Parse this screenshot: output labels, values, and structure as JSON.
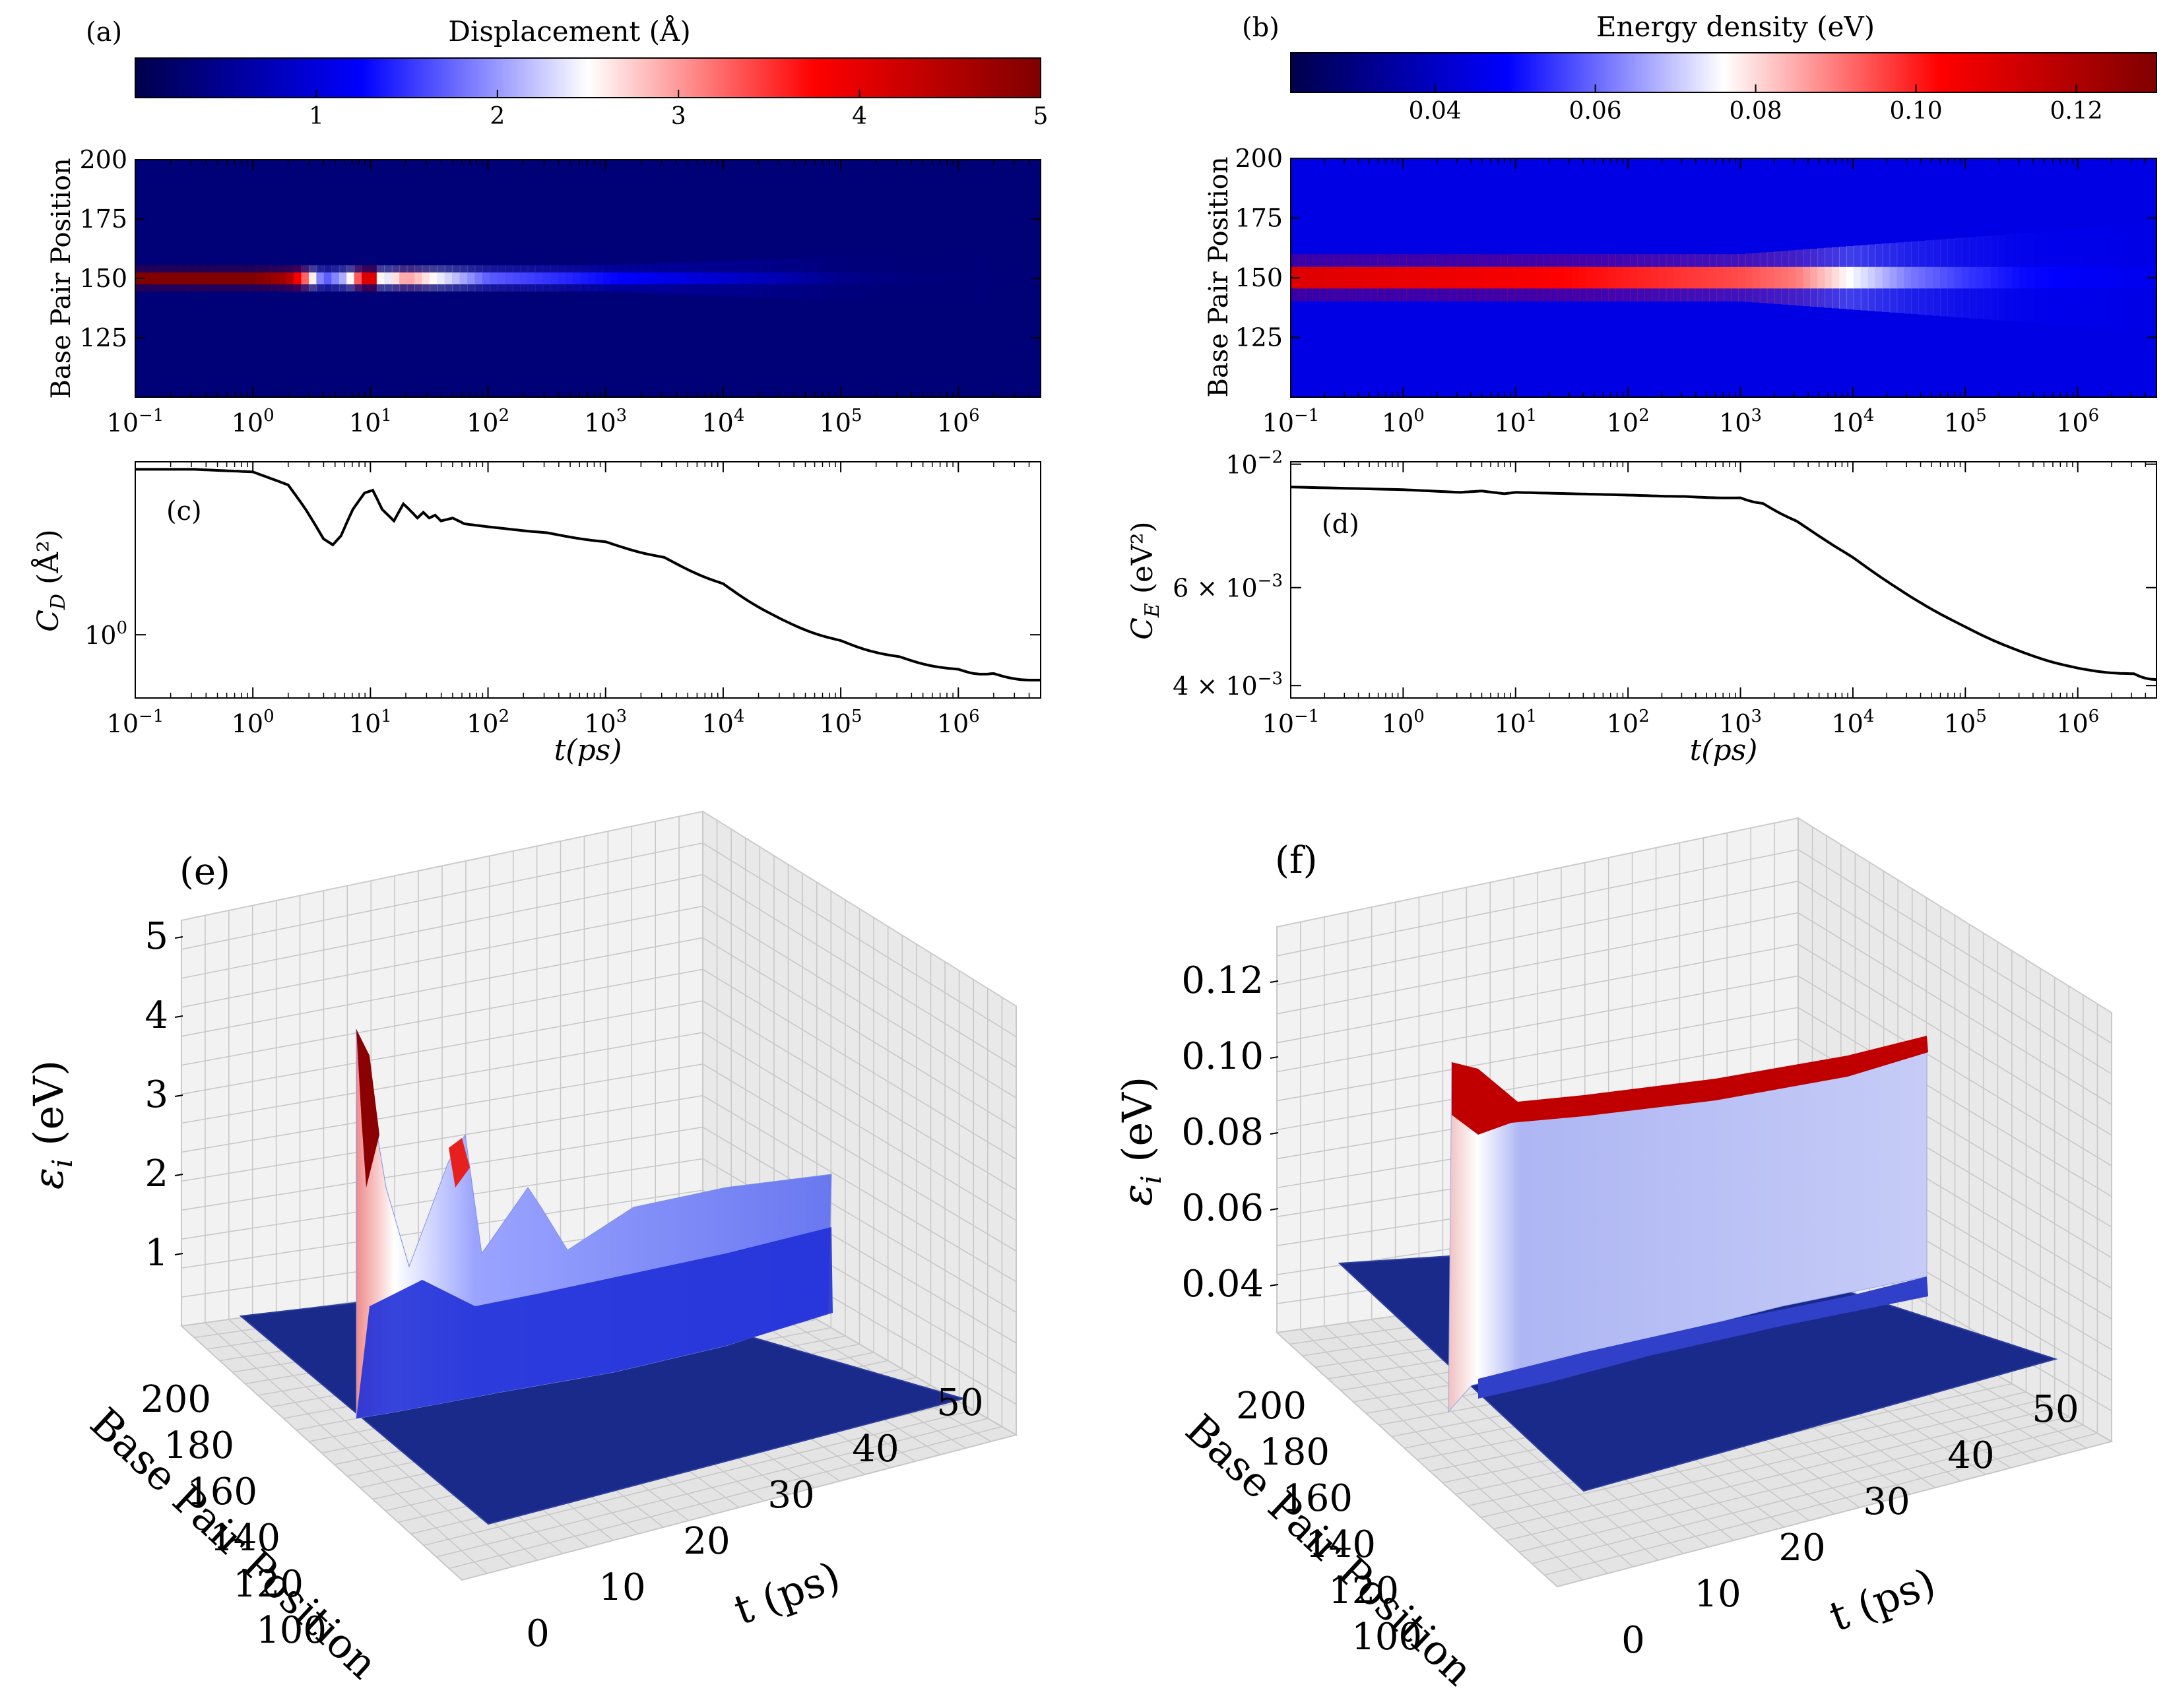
{
  "chart_data": [
    {
      "panel": "a",
      "type": "heatmap",
      "label": "(a)",
      "colorbar": {
        "title": "Displacement (Å)",
        "ticks": [
          "1",
          "2",
          "3",
          "4",
          "5"
        ],
        "tick_values": [
          1,
          2,
          3,
          4,
          5
        ],
        "range": [
          0,
          5
        ],
        "colormap": "seismic"
      },
      "xlabel": "",
      "xscale": "log",
      "xlim_exp": [
        -1,
        6.7
      ],
      "xtick_exps": [
        -1,
        0,
        1,
        2,
        3,
        4,
        5,
        6
      ],
      "xtick_bases": [
        "10",
        "10",
        "10",
        "10",
        "10",
        "10",
        "10",
        "10"
      ],
      "xtick_sups": [
        "−1",
        "0",
        "1",
        "2",
        "3",
        "4",
        "5",
        "6"
      ],
      "ylabel": "Base Pair Position",
      "ylim": [
        100,
        200
      ],
      "yticks": [
        125,
        150,
        175,
        200
      ],
      "ytick_labels": [
        "125",
        "150",
        "175",
        "200"
      ],
      "background_value": 0.3,
      "ridge": {
        "center_position": 150,
        "half_width": 2.5,
        "profile": [
          [
            -1,
            5
          ],
          [
            0,
            5
          ],
          [
            0.3,
            4.6
          ],
          [
            0.45,
            3.2
          ],
          [
            0.6,
            1.6
          ],
          [
            0.8,
            2.2
          ],
          [
            1,
            4.6
          ],
          [
            1.1,
            2.2
          ],
          [
            1.3,
            3.0
          ],
          [
            1.6,
            2.4
          ],
          [
            2,
            1.7
          ],
          [
            2.5,
            1.5
          ],
          [
            3,
            1.3
          ],
          [
            3.5,
            1.1
          ],
          [
            4,
            0.9
          ],
          [
            4.5,
            0.7
          ],
          [
            5,
            0.45
          ],
          [
            5.5,
            0.35
          ],
          [
            6.7,
            0.3
          ]
        ]
      }
    },
    {
      "panel": "b",
      "type": "heatmap",
      "label": "(b)",
      "colorbar": {
        "title": "Energy density (eV)",
        "ticks": [
          "0.04",
          "0.06",
          "0.08",
          "0.10",
          "0.12"
        ],
        "tick_values": [
          0.04,
          0.06,
          0.08,
          0.1,
          0.12
        ],
        "range": [
          0.022,
          0.13
        ],
        "colormap": "seismic"
      },
      "xlabel": "",
      "xscale": "log",
      "xlim_exp": [
        -1,
        6.7
      ],
      "xtick_exps": [
        -1,
        0,
        1,
        2,
        3,
        4,
        5,
        6
      ],
      "xtick_bases": [
        "10",
        "10",
        "10",
        "10",
        "10",
        "10",
        "10",
        "10"
      ],
      "xtick_sups": [
        "−1",
        "0",
        "1",
        "2",
        "3",
        "4",
        "5",
        "6"
      ],
      "ylabel": "Base Pair Position",
      "ylim": [
        100,
        200
      ],
      "yticks": [
        125,
        150,
        175,
        200
      ],
      "ytick_labels": [
        "125",
        "150",
        "175",
        "200"
      ],
      "background_value": 0.045,
      "ridge": {
        "center_position": 150,
        "half_width": 4.5,
        "profile": [
          [
            -1,
            0.11
          ],
          [
            1,
            0.105
          ],
          [
            2,
            0.1
          ],
          [
            3,
            0.095
          ],
          [
            3.5,
            0.09
          ],
          [
            4,
            0.075
          ],
          [
            4.5,
            0.062
          ],
          [
            5,
            0.055
          ],
          [
            5.5,
            0.05
          ],
          [
            6.7,
            0.046
          ]
        ]
      }
    },
    {
      "panel": "c",
      "type": "line",
      "label": "(c)",
      "xlabel": "t(ps)",
      "xscale": "log",
      "xlim_exp": [
        -1,
        6.7
      ],
      "xtick_exps": [
        -1,
        0,
        1,
        2,
        3,
        4,
        5,
        6
      ],
      "xtick_bases": [
        "10",
        "10",
        "10",
        "10",
        "10",
        "10",
        "10",
        "10"
      ],
      "xtick_sups": [
        "−1",
        "0",
        "1",
        "2",
        "3",
        "4",
        "5",
        "6"
      ],
      "ylabel_sym": "C",
      "ylabel_sub": "D",
      "ylabel_unit": "(Å²)",
      "yscale": "log",
      "ylim": [
        0.85,
        1.56
      ],
      "yticks": [
        1.0
      ],
      "ytick_bases": [
        "10"
      ],
      "ytick_sups": [
        "0"
      ],
      "series": [
        {
          "name": "C_D",
          "color": "#000000",
          "x_exp": [
            -1,
            -0.5,
            0,
            0.3,
            0.45,
            0.6,
            0.68,
            0.75,
            0.85,
            0.95,
            1.02,
            1.1,
            1.2,
            1.28,
            1.33,
            1.4,
            1.45,
            1.5,
            1.55,
            1.6,
            1.7,
            1.8,
            2,
            2.5,
            3,
            3.5,
            4,
            4.5,
            5,
            5.5,
            6,
            6.3,
            6.7
          ],
          "y": [
            1.53,
            1.53,
            1.52,
            1.47,
            1.38,
            1.28,
            1.26,
            1.29,
            1.38,
            1.44,
            1.45,
            1.38,
            1.34,
            1.4,
            1.38,
            1.35,
            1.37,
            1.35,
            1.36,
            1.34,
            1.35,
            1.33,
            1.32,
            1.3,
            1.27,
            1.22,
            1.14,
            1.04,
            0.985,
            0.945,
            0.915,
            0.905,
            0.89
          ]
        }
      ]
    },
    {
      "panel": "d",
      "type": "line",
      "label": "(d)",
      "xlabel": "t(ps)",
      "xscale": "log",
      "xlim_exp": [
        -1,
        6.7
      ],
      "xtick_exps": [
        -1,
        0,
        1,
        2,
        3,
        4,
        5,
        6
      ],
      "xtick_bases": [
        "10",
        "10",
        "10",
        "10",
        "10",
        "10",
        "10",
        "10"
      ],
      "xtick_sups": [
        "−1",
        "0",
        "1",
        "2",
        "3",
        "4",
        "5",
        "6"
      ],
      "ylabel_sym": "C",
      "ylabel_sub": "E",
      "ylabel_unit": "(eV²)",
      "yscale": "log",
      "ylim": [
        0.0038,
        0.0101
      ],
      "yticks": [
        0.01,
        0.006,
        0.004
      ],
      "ytick_bases": [
        "10",
        "6 × 10",
        "4 × 10"
      ],
      "ytick_sups": [
        "−2",
        "−3",
        "−3"
      ],
      "series": [
        {
          "name": "C_E",
          "color": "#000000",
          "x_exp": [
            -1,
            0,
            0.5,
            0.7,
            0.8,
            0.9,
            1,
            1.5,
            2,
            2.5,
            3,
            3.2,
            3.5,
            4,
            4.5,
            5,
            5.5,
            6,
            6.5,
            6.7
          ],
          "y": [
            0.0091,
            0.009,
            0.0089,
            0.00895,
            0.0089,
            0.00885,
            0.0089,
            0.00885,
            0.0088,
            0.00875,
            0.0087,
            0.0085,
            0.0079,
            0.0068,
            0.0058,
            0.0051,
            0.0046,
            0.0043,
            0.0042,
            0.0041
          ]
        }
      ]
    },
    {
      "panel": "e",
      "type": "surface3d",
      "label": "(e)",
      "zlabel_sym": "ε",
      "zlabel_sub": "i",
      "zlabel_unit": "(eV)",
      "zticks": [
        "1",
        "2",
        "3",
        "4",
        "5"
      ],
      "zlim": [
        0,
        5
      ],
      "ylabel": "Base Pair Position",
      "yticks": [
        "200",
        "180",
        "160",
        "140",
        "120",
        "100"
      ],
      "xlabel": "t (ps)",
      "xticks": [
        "0",
        "10",
        "20",
        "30",
        "40",
        "50"
      ],
      "ridge_position": 150
    },
    {
      "panel": "f",
      "type": "surface3d",
      "label": "(f)",
      "zlabel_sym": "ε",
      "zlabel_sub": "i",
      "zlabel_unit": "(eV)",
      "zticks": [
        "0.04",
        "0.06",
        "0.08",
        "0.10",
        "0.12"
      ],
      "zlim": [
        0.03,
        0.13
      ],
      "ylabel": "Base Pair Position",
      "yticks": [
        "200",
        "180",
        "160",
        "140",
        "120",
        "100"
      ],
      "xlabel": "t (ps)",
      "xticks": [
        "0",
        "10",
        "20",
        "30",
        "40",
        "50"
      ],
      "ridge_position": 150
    }
  ]
}
